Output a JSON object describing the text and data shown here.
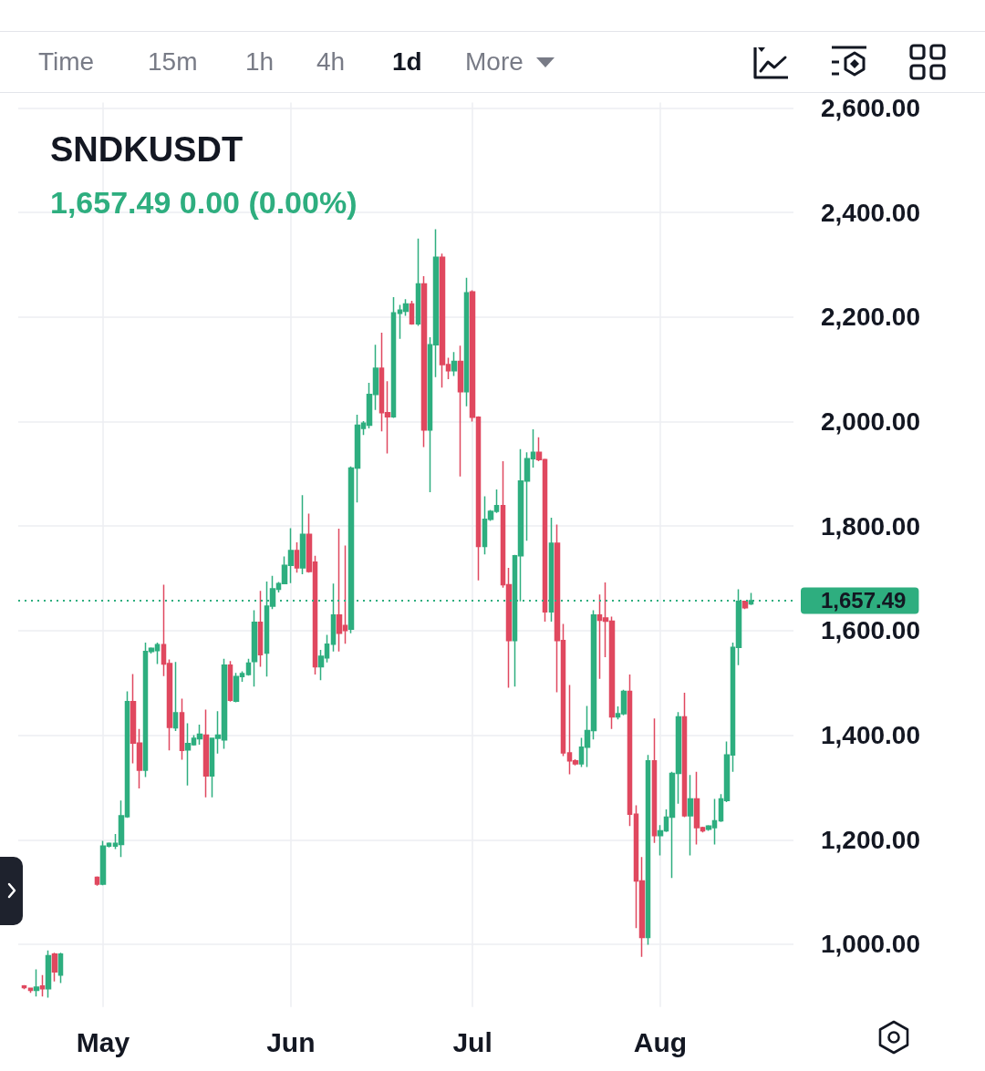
{
  "chart_data": {
    "type": "candlestick",
    "title": "SNDKUSDT",
    "subtitle": "1,657.49 0.00 (0.00%)",
    "annotations": [
      "Time",
      "15m",
      "1h",
      "4h",
      "1d",
      "More"
    ],
    "x": [
      "--04-18",
      "--04-19",
      "--04-20",
      "--04-21",
      "--04-22",
      "--04-23",
      "--04-24",
      "--04-30",
      "--05-01",
      "--05-02",
      "--05-03",
      "--05-04",
      "--05-05",
      "--05-06",
      "--05-07",
      "--05-08",
      "--05-09",
      "--05-10",
      "--05-11",
      "--05-12",
      "--05-13",
      "--05-14",
      "--05-15",
      "--05-16",
      "--05-17",
      "--05-18",
      "--05-19",
      "--05-20",
      "--05-21",
      "--05-22",
      "--05-23",
      "--05-24",
      "--05-25",
      "--05-26",
      "--05-27",
      "--05-28",
      "--05-29",
      "--05-30",
      "--05-31",
      "--06-01",
      "--06-02",
      "--06-03",
      "--06-04",
      "--06-05",
      "--06-06",
      "--06-07",
      "--06-08",
      "--06-09",
      "--06-10",
      "--06-11",
      "--06-12",
      "--06-13",
      "--06-14",
      "--06-15",
      "--06-16",
      "--06-17",
      "--06-18",
      "--06-19",
      "--06-20",
      "--06-21",
      "--06-22",
      "--06-23",
      "--06-24",
      "--06-25",
      "--06-26",
      "--06-27",
      "--06-28",
      "--06-29",
      "--06-30",
      "--07-01",
      "--07-02",
      "--07-03",
      "--07-04",
      "--07-05",
      "--07-06",
      "--07-07",
      "--07-08",
      "--07-09",
      "--07-10",
      "--07-11",
      "--07-12",
      "--07-13",
      "--07-14",
      "--07-15",
      "--07-16",
      "--07-17",
      "--07-18",
      "--07-19",
      "--07-20",
      "--07-21",
      "--07-22",
      "--07-23",
      "--07-24",
      "--07-25",
      "--07-26",
      "--07-27",
      "--07-28",
      "--07-29",
      "--07-30",
      "--07-31",
      "--08-01",
      "--08-02",
      "--08-03",
      "--08-04",
      "--08-05",
      "--08-06",
      "--08-07",
      "--08-08",
      "--08-09",
      "--08-10",
      "--08-11",
      "--08-12",
      "--08-13",
      "--08-14",
      "--08-15",
      "--08-16"
    ],
    "ohlc": [
      [
        920,
        922,
        914,
        917
      ],
      [
        916,
        917,
        907,
        912
      ],
      [
        912,
        952,
        900,
        918
      ],
      [
        920,
        941,
        900,
        915
      ],
      [
        915,
        988,
        898,
        978
      ],
      [
        981,
        984,
        929,
        947
      ],
      [
        941,
        984,
        926,
        981
      ],
      [
        1128,
        1130,
        1112,
        1115
      ],
      [
        1115,
        1198,
        1113,
        1188
      ],
      [
        1188,
        1195,
        1185,
        1193
      ],
      [
        1188,
        1211,
        1182,
        1193
      ],
      [
        1191,
        1275,
        1167,
        1246
      ],
      [
        1244,
        1484,
        1242,
        1464
      ],
      [
        1464,
        1517,
        1346,
        1385
      ],
      [
        1385,
        1412,
        1298,
        1333
      ],
      [
        1333,
        1577,
        1320,
        1560
      ],
      [
        1560,
        1568,
        1556,
        1566
      ],
      [
        1562,
        1577,
        1536,
        1573
      ],
      [
        1573,
        1688,
        1513,
        1536
      ],
      [
        1537,
        1545,
        1371,
        1415
      ],
      [
        1414,
        1540,
        1408,
        1443
      ],
      [
        1443,
        1470,
        1353,
        1371
      ],
      [
        1372,
        1423,
        1304,
        1384
      ],
      [
        1382,
        1400,
        1380,
        1394
      ],
      [
        1393,
        1420,
        1382,
        1402
      ],
      [
        1400,
        1449,
        1281,
        1322
      ],
      [
        1322,
        1395,
        1281,
        1394
      ],
      [
        1394,
        1446,
        1365,
        1400
      ],
      [
        1391,
        1546,
        1374,
        1534
      ],
      [
        1534,
        1542,
        1464,
        1467
      ],
      [
        1465,
        1519,
        1463,
        1512
      ],
      [
        1512,
        1522,
        1502,
        1518
      ],
      [
        1516,
        1546,
        1514,
        1538
      ],
      [
        1541,
        1639,
        1493,
        1616
      ],
      [
        1616,
        1676,
        1531,
        1554
      ],
      [
        1557,
        1694,
        1512,
        1647
      ],
      [
        1647,
        1705,
        1641,
        1680
      ],
      [
        1679,
        1693,
        1673,
        1690
      ],
      [
        1690,
        1742,
        1689,
        1725
      ],
      [
        1725,
        1796,
        1691,
        1753
      ],
      [
        1753,
        1769,
        1711,
        1720
      ],
      [
        1720,
        1859,
        1708,
        1784
      ],
      [
        1784,
        1824,
        1711,
        1713
      ],
      [
        1731,
        1743,
        1516,
        1531
      ],
      [
        1531,
        1563,
        1505,
        1551
      ],
      [
        1548,
        1592,
        1539,
        1574
      ],
      [
        1574,
        1690,
        1560,
        1630
      ],
      [
        1630,
        1795,
        1560,
        1595
      ],
      [
        1610,
        1763,
        1575,
        1600
      ],
      [
        1603,
        1914,
        1595,
        1911
      ],
      [
        1911,
        2013,
        1845,
        1993
      ],
      [
        1987,
        2001,
        1974,
        1997
      ],
      [
        1993,
        2074,
        1987,
        2052
      ],
      [
        2052,
        2147,
        2022,
        2102
      ],
      [
        2102,
        2170,
        1981,
        2017
      ],
      [
        2017,
        2077,
        1939,
        2009
      ],
      [
        2009,
        2238,
        2007,
        2208
      ],
      [
        2207,
        2223,
        2158,
        2213
      ],
      [
        2211,
        2234,
        2202,
        2225
      ],
      [
        2225,
        2231,
        2185,
        2187
      ],
      [
        2187,
        2350,
        2183,
        2263
      ],
      [
        2263,
        2278,
        1951,
        1984
      ],
      [
        1984,
        2161,
        1865,
        2147
      ],
      [
        2147,
        2368,
        2085,
        2314
      ],
      [
        2314,
        2321,
        2065,
        2109
      ],
      [
        2109,
        2122,
        2081,
        2097
      ],
      [
        2097,
        2133,
        2087,
        2115
      ],
      [
        2115,
        2145,
        1895,
        2057
      ],
      [
        2057,
        2275,
        2029,
        2246
      ],
      [
        2248,
        2251,
        2000,
        2008
      ],
      [
        2008,
        2010,
        1696,
        1761
      ],
      [
        1761,
        1857,
        1746,
        1813
      ],
      [
        1813,
        1831,
        1810,
        1828
      ],
      [
        1828,
        1870,
        1825,
        1839
      ],
      [
        1839,
        1924,
        1682,
        1688
      ],
      [
        1688,
        1720,
        1491,
        1581
      ],
      [
        1581,
        1745,
        1493,
        1743
      ],
      [
        1743,
        1947,
        1656,
        1886
      ],
      [
        1886,
        1941,
        1772,
        1929
      ],
      [
        1929,
        1985,
        1912,
        1941
      ],
      [
        1941,
        1970,
        1924,
        1927
      ],
      [
        1927,
        1929,
        1617,
        1636
      ],
      [
        1636,
        1816,
        1617,
        1767
      ],
      [
        1767,
        1803,
        1482,
        1581
      ],
      [
        1581,
        1613,
        1360,
        1366
      ],
      [
        1366,
        1496,
        1325,
        1351
      ],
      [
        1351,
        1354,
        1342,
        1345
      ],
      [
        1345,
        1395,
        1339,
        1377
      ],
      [
        1377,
        1456,
        1339,
        1409
      ],
      [
        1409,
        1639,
        1392,
        1630
      ],
      [
        1630,
        1669,
        1508,
        1620
      ],
      [
        1624,
        1692,
        1549,
        1618
      ],
      [
        1618,
        1627,
        1412,
        1435
      ],
      [
        1435,
        1455,
        1430,
        1441
      ],
      [
        1441,
        1487,
        1438,
        1484
      ],
      [
        1484,
        1516,
        1226,
        1249
      ],
      [
        1249,
        1266,
        1031,
        1121
      ],
      [
        1121,
        1167,
        976,
        1013
      ],
      [
        1013,
        1362,
        999,
        1351
      ],
      [
        1351,
        1432,
        1194,
        1208
      ],
      [
        1208,
        1228,
        1170,
        1217
      ],
      [
        1217,
        1258,
        1215,
        1243
      ],
      [
        1243,
        1330,
        1127,
        1327
      ],
      [
        1327,
        1444,
        1269,
        1435
      ],
      [
        1435,
        1481,
        1243,
        1246
      ],
      [
        1246,
        1324,
        1170,
        1278
      ],
      [
        1278,
        1330,
        1191,
        1223
      ],
      [
        1223,
        1225,
        1214,
        1217
      ],
      [
        1220,
        1228,
        1217,
        1226
      ],
      [
        1223,
        1278,
        1191,
        1236
      ],
      [
        1236,
        1287,
        1234,
        1278
      ],
      [
        1275,
        1388,
        1272,
        1362
      ],
      [
        1362,
        1577,
        1330,
        1568
      ],
      [
        1568,
        1679,
        1534,
        1656
      ],
      [
        1656,
        1657,
        1641,
        1644
      ],
      [
        1651,
        1672,
        1649,
        1657.49
      ]
    ],
    "colors": [
      "#e0485f",
      "#e0485f",
      "#2eae7f",
      "#e0485f",
      "#2eae7f",
      "#e0485f",
      "#2eae7f",
      "#e0485f",
      "#2eae7f",
      "#2eae7f",
      "#2eae7f",
      "#2eae7f",
      "#2eae7f",
      "#e0485f",
      "#e0485f",
      "#2eae7f",
      "#2eae7f",
      "#2eae7f",
      "#e0485f",
      "#e0485f",
      "#2eae7f",
      "#e0485f",
      "#2eae7f",
      "#2eae7f",
      "#2eae7f",
      "#e0485f",
      "#2eae7f",
      "#2eae7f",
      "#2eae7f",
      "#e0485f",
      "#2eae7f",
      "#2eae7f",
      "#2eae7f",
      "#2eae7f",
      "#e0485f",
      "#2eae7f",
      "#2eae7f",
      "#2eae7f",
      "#2eae7f",
      "#2eae7f",
      "#e0485f",
      "#2eae7f",
      "#e0485f",
      "#e0485f",
      "#2eae7f",
      "#2eae7f",
      "#2eae7f",
      "#e0485f",
      "#e0485f",
      "#2eae7f",
      "#2eae7f",
      "#2eae7f",
      "#2eae7f",
      "#2eae7f",
      "#e0485f",
      "#e0485f",
      "#2eae7f",
      "#2eae7f",
      "#2eae7f",
      "#e0485f",
      "#2eae7f",
      "#e0485f",
      "#2eae7f",
      "#2eae7f",
      "#e0485f",
      "#e0485f",
      "#2eae7f",
      "#e0485f",
      "#2eae7f",
      "#e0485f",
      "#e0485f",
      "#2eae7f",
      "#2eae7f",
      "#2eae7f",
      "#e0485f",
      "#e0485f",
      "#2eae7f",
      "#2eae7f",
      "#2eae7f",
      "#2eae7f",
      "#e0485f",
      "#e0485f",
      "#2eae7f",
      "#e0485f",
      "#e0485f",
      "#e0485f",
      "#e0485f",
      "#2eae7f",
      "#2eae7f",
      "#2eae7f",
      "#e0485f",
      "#e0485f",
      "#e0485f",
      "#2eae7f",
      "#2eae7f",
      "#e0485f",
      "#e0485f",
      "#e0485f",
      "#2eae7f",
      "#e0485f",
      "#2eae7f",
      "#2eae7f",
      "#2eae7f",
      "#2eae7f",
      "#e0485f",
      "#2eae7f",
      "#e0485f",
      "#e0485f",
      "#2eae7f",
      "#2eae7f",
      "#2eae7f",
      "#2eae7f",
      "#2eae7f",
      "#2eae7f",
      "#e0485f",
      "#2eae7f"
    ],
    "xlim": [
      "--04-17",
      "--08-23"
    ],
    "xticks": [
      {
        "value": "--05-01",
        "label": "May"
      },
      {
        "value": "--06-01",
        "label": "Jun"
      },
      {
        "value": "--07-01",
        "label": "Jul"
      },
      {
        "value": "--08-01",
        "label": "Aug"
      }
    ],
    "ylim": [
      880,
      2610
    ],
    "yticks": [
      {
        "value": 1000,
        "label": "1,000.00"
      },
      {
        "value": 1200,
        "label": "1,200.00"
      },
      {
        "value": 1400,
        "label": "1,400.00"
      },
      {
        "value": 1600,
        "label": "1,600.00"
      },
      {
        "value": 1800,
        "label": "1,800.00"
      },
      {
        "value": 2000,
        "label": "2,000.00"
      },
      {
        "value": 2200,
        "label": "2,200.00"
      },
      {
        "value": 2400,
        "label": "2,400.00"
      },
      {
        "value": 2600,
        "label": "2,600.00"
      }
    ],
    "grid": true,
    "ref_lines": [
      {
        "axis": "y",
        "value": 1657.49,
        "label": "1,657.49",
        "color": "#2eae7f",
        "line_style": "dotted"
      }
    ]
  }
}
